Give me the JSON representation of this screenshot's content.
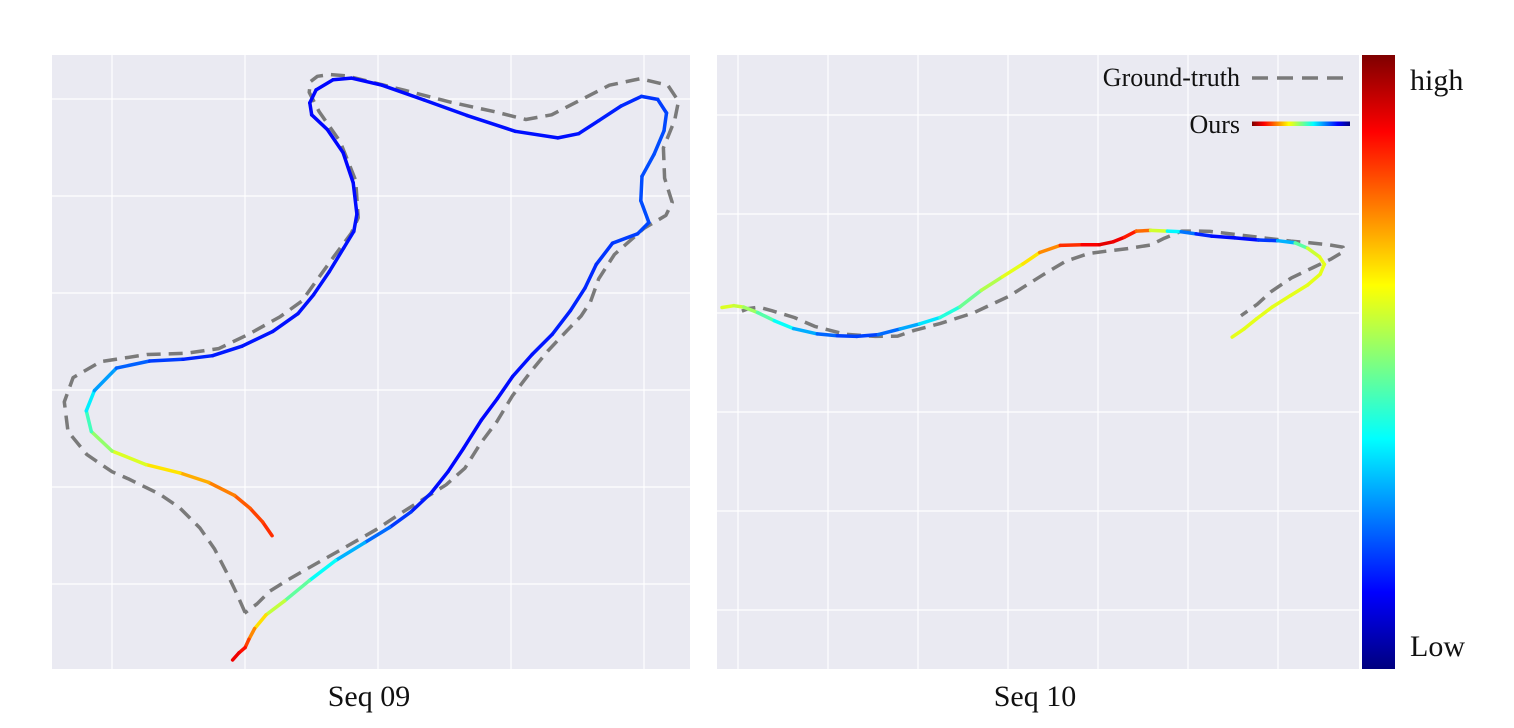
{
  "figure": {
    "panels": [
      {
        "id": "seq09",
        "caption": "Seq 09"
      },
      {
        "id": "seq10",
        "caption": "Seq 10"
      }
    ],
    "legend": {
      "ground_truth": "Ground-truth",
      "ours": "Ours"
    },
    "colorbar": {
      "high_label": "high",
      "low_label": "Low",
      "colormap": "jet"
    }
  },
  "colors": {
    "plot_background": "#eaeaf2",
    "grid": "#ffffff",
    "ground_truth_line": "#7a7a7a",
    "jet_stops": [
      "#00007f",
      "#0000ff",
      "#007fff",
      "#00ffff",
      "#7fff7f",
      "#ffff00",
      "#ff7f00",
      "#ff0000",
      "#7f0000"
    ]
  },
  "chart_data": [
    {
      "type": "line",
      "title": "Seq 09",
      "grid": true,
      "xlim": [
        0,
        100
      ],
      "ylim": [
        0,
        100
      ],
      "series": [
        {
          "name": "Ground-truth",
          "style": "dashed",
          "x": [
            29.8,
            28.6,
            26.9,
            24.9,
            22.6,
            19.4,
            16.2,
            11.4,
            8.6,
            4.6,
            1.6,
            1.0,
            2.4,
            6.8,
            14.2,
            20.4,
            25.6,
            30.5,
            35.4,
            38.8,
            40.9,
            43.9,
            46.7,
            47.8,
            47.4,
            44.9,
            41.6,
            40.0,
            40.2,
            41.3,
            43.3,
            45.7,
            48.9,
            55.3,
            62.6,
            69.6,
            74.5,
            78.6,
            83.2,
            87.8,
            92.7,
            97.1,
            98.8,
            98.2,
            96.4,
            96.6,
            97.8,
            96.8,
            93.3,
            88.6,
            86.1,
            84.8,
            83.3,
            81.1,
            78.0,
            75.2,
            72.4,
            69.9,
            67.3,
            64.8,
            61.8,
            58.5,
            54.6,
            50.6,
            45.0,
            40.0,
            36.7,
            33.7,
            31.7,
            29.7
          ],
          "y": [
            8.0,
            10.9,
            14.7,
            18.8,
            22.3,
            25.7,
            28.0,
            30.5,
            31.8,
            34.7,
            38.6,
            43.6,
            47.7,
            50.4,
            51.6,
            51.8,
            52.6,
            55.1,
            58.0,
            60.6,
            63.7,
            68.1,
            72.1,
            74.7,
            81.0,
            87.6,
            92.6,
            95.9,
            97.7,
            98.6,
            98.9,
            98.7,
            97.9,
            96.2,
            94.2,
            92.6,
            91.3,
            92.1,
            94.6,
            97.1,
            98.2,
            97.1,
            94.4,
            91.2,
            86.5,
            81.4,
            77.3,
            75.1,
            72.9,
            68.5,
            64.4,
            60.5,
            58.1,
            55.7,
            52.2,
            48.6,
            44.7,
            40.3,
            36.6,
            32.4,
            29.6,
            27.4,
            24.8,
            22.0,
            18.6,
            15.6,
            13.6,
            11.6,
            9.5,
            7.9
          ]
        },
        {
          "name": "Ours",
          "style": "solid-gradient",
          "x": [
            34.1,
            32.6,
            30.6,
            28.1,
            24.0,
            19.4,
            14.0,
            8.6,
            5.3,
            4.5,
            5.8,
            9.3,
            14.6,
            19.9,
            24.6,
            29.3,
            34.2,
            38.2,
            40.7,
            43.2,
            45.5,
            47.1,
            47.6,
            47.0,
            45.4,
            42.9,
            40.4,
            40.1,
            41.1,
            43.8,
            46.7,
            51.6,
            58.3,
            65.1,
            72.8,
            79.6,
            82.9,
            86.1,
            89.7,
            92.9,
            95.5,
            96.9,
            96.5,
            94.9,
            93.0,
            92.8,
            94.1,
            92.3,
            88.3,
            85.7,
            83.9,
            81.6,
            78.7,
            75.5,
            72.4,
            70.0,
            67.4,
            64.6,
            62.1,
            59.4,
            56.2,
            52.8,
            48.8,
            44.2,
            40.0,
            36.1,
            33.1,
            31.3,
            30.4,
            29.8,
            28.8,
            27.8
          ],
          "y": [
            21.0,
            23.3,
            25.6,
            27.8,
            30.0,
            31.6,
            33.0,
            35.3,
            38.6,
            42.1,
            45.5,
            49.3,
            50.5,
            50.8,
            51.4,
            53.0,
            55.5,
            58.5,
            61.7,
            65.6,
            69.6,
            72.4,
            75.3,
            80.6,
            85.7,
            89.6,
            92.1,
            94.1,
            96.3,
            98.0,
            98.3,
            97.1,
            94.6,
            92.0,
            89.3,
            88.2,
            88.9,
            91.1,
            93.6,
            95.2,
            94.7,
            92.4,
            89.4,
            85.4,
            81.7,
            77.6,
            73.9,
            72.0,
            70.4,
            66.8,
            62.8,
            59.0,
            55.0,
            51.6,
            47.9,
            44.2,
            40.5,
            35.8,
            31.8,
            28.2,
            25.0,
            22.4,
            19.8,
            16.8,
            13.4,
            10.0,
            7.6,
            5.3,
            3.5,
            2.1,
            1.2,
            0.0
          ],
          "value": [
            0.84,
            0.82,
            0.8,
            0.77,
            0.73,
            0.68,
            0.62,
            0.56,
            0.48,
            0.4,
            0.32,
            0.24,
            0.2,
            0.17,
            0.15,
            0.15,
            0.14,
            0.14,
            0.14,
            0.14,
            0.14,
            0.14,
            0.14,
            0.13,
            0.13,
            0.13,
            0.13,
            0.13,
            0.13,
            0.13,
            0.13,
            0.13,
            0.14,
            0.14,
            0.14,
            0.14,
            0.14,
            0.15,
            0.16,
            0.17,
            0.18,
            0.19,
            0.2,
            0.2,
            0.2,
            0.2,
            0.2,
            0.19,
            0.18,
            0.17,
            0.16,
            0.16,
            0.15,
            0.14,
            0.14,
            0.13,
            0.13,
            0.13,
            0.13,
            0.14,
            0.16,
            0.2,
            0.26,
            0.34,
            0.42,
            0.52,
            0.61,
            0.7,
            0.78,
            0.84,
            0.88,
            0.9
          ]
        }
      ]
    },
    {
      "type": "line",
      "title": "Seq 10",
      "grid": true,
      "legend": "top-right",
      "xlim": [
        0,
        100
      ],
      "ylim": [
        0,
        100
      ],
      "series": [
        {
          "name": "Ground-truth",
          "style": "dashed",
          "x": [
            3.2,
            4.2,
            5.9,
            8.0,
            11.6,
            14.9,
            19.8,
            24.6,
            28.2,
            30.9,
            35.0,
            40.4,
            46.0,
            51.3,
            55.1,
            58.8,
            61.8,
            65.1,
            68.8,
            71.0,
            73.8,
            76.7,
            78.3,
            81.3,
            84.1,
            87.3,
            91.3,
            94.5,
            97.3,
            99.7,
            99.9,
            97.8,
            94.9,
            91.4,
            88.1,
            85.9,
            83.3
          ],
          "y": [
            42.0,
            42.7,
            43.1,
            42.1,
            40.2,
            37.7,
            35.5,
            34.9,
            35.0,
            36.6,
            38.5,
            41.5,
            46.1,
            51.9,
            55.9,
            58.1,
            58.8,
            59.5,
            60.5,
            62.4,
            64.4,
            64.4,
            64.3,
            63.7,
            63.1,
            62.4,
            61.6,
            61.1,
            60.6,
            59.9,
            58.8,
            56.6,
            54.2,
            51.3,
            47.4,
            43.9,
            40.7
          ],
          "name_label": "Ground-truth"
        },
        {
          "name": "Ours",
          "style": "solid-gradient",
          "x": [
            0.0,
            1.9,
            3.5,
            5.7,
            8.4,
            11.5,
            15.3,
            18.5,
            21.6,
            25.1,
            28.6,
            31.7,
            35.0,
            38.2,
            41.6,
            45.0,
            48.3,
            51.0,
            54.3,
            57.8,
            60.6,
            62.8,
            64.6,
            66.5,
            68.8,
            71.5,
            73.7,
            76.1,
            78.6,
            82.3,
            86.1,
            89.2,
            92.0,
            94.0,
            95.9,
            96.7,
            96.0,
            94.0,
            91.2,
            88.3,
            85.8,
            83.8,
            81.9
          ],
          "y": [
            43.0,
            43.5,
            43.1,
            41.6,
            39.3,
            37.1,
            35.6,
            35.1,
            34.9,
            35.4,
            37.0,
            38.4,
            40.2,
            43.2,
            47.8,
            51.6,
            55.2,
            58.4,
            60.4,
            60.6,
            60.6,
            61.4,
            62.7,
            64.4,
            64.6,
            64.4,
            64.2,
            63.6,
            63.0,
            62.5,
            61.9,
            61.7,
            61.1,
            59.6,
            57.2,
            55.1,
            52.3,
            49.3,
            46.3,
            43.1,
            39.8,
            37.0,
            34.7
          ],
          "value": [
            0.6,
            0.58,
            0.56,
            0.5,
            0.42,
            0.34,
            0.25,
            0.2,
            0.18,
            0.2,
            0.26,
            0.32,
            0.38,
            0.44,
            0.52,
            0.58,
            0.62,
            0.68,
            0.8,
            0.86,
            0.9,
            0.9,
            0.88,
            0.82,
            0.72,
            0.44,
            0.3,
            0.18,
            0.14,
            0.13,
            0.14,
            0.22,
            0.38,
            0.55,
            0.6,
            0.6,
            0.6,
            0.6,
            0.6,
            0.6,
            0.6,
            0.6,
            0.6
          ]
        }
      ]
    }
  ]
}
